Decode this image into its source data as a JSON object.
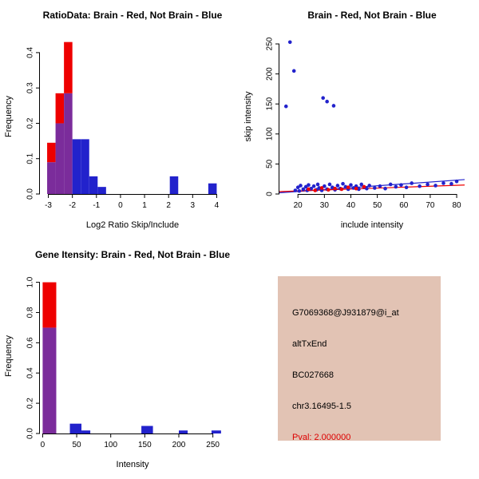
{
  "colors": {
    "brain_red": "#EE0000",
    "not_brain_blue": "#2222CC",
    "overlap_purple": "#7B2C9B",
    "axis_black": "#000000",
    "info_box_bg": "#E2C3B4",
    "pval_red": "#DD0000"
  },
  "chart_data": [
    {
      "id": "ratio-histogram",
      "type": "bar",
      "title": "RatioData: Brain - Red, Not Brain - Blue",
      "xlabel": "Log2 Ratio Skip/Include",
      "ylabel": "Frequency",
      "xlim": [
        -3.35,
        4.35
      ],
      "ylim": [
        0,
        0.445
      ],
      "grid": false,
      "xticks": [
        {
          "v": -3,
          "l": "-3"
        },
        {
          "v": -2,
          "l": "-2"
        },
        {
          "v": -1,
          "l": "-1"
        },
        {
          "v": 0,
          "l": "0"
        },
        {
          "v": 1,
          "l": "1"
        },
        {
          "v": 2,
          "l": "2"
        },
        {
          "v": 3,
          "l": "3"
        },
        {
          "v": 4,
          "l": "4"
        }
      ],
      "yticks": [
        {
          "v": 0,
          "l": "0.0"
        },
        {
          "v": 0.1,
          "l": "0.1"
        },
        {
          "v": 0.2,
          "l": "0.2"
        },
        {
          "v": 0.3,
          "l": "0.3"
        },
        {
          "v": 0.4,
          "l": "0.4"
        }
      ],
      "series": [
        {
          "name": "Brain",
          "color_key": "brain_red",
          "bins": [
            {
              "x0": -3.05,
              "x1": -2.7,
              "h": 0.145
            },
            {
              "x0": -2.7,
              "x1": -2.35,
              "h": 0.285
            },
            {
              "x0": -2.35,
              "x1": -2.0,
              "h": 0.43
            }
          ]
        },
        {
          "name": "Not Brain",
          "color_key": "not_brain_blue",
          "bins": [
            {
              "x0": -3.05,
              "x1": -2.7,
              "h": 0.09
            },
            {
              "x0": -2.7,
              "x1": -2.35,
              "h": 0.2
            },
            {
              "x0": -2.35,
              "x1": -2.0,
              "h": 0.285
            },
            {
              "x0": -2.0,
              "x1": -1.65,
              "h": 0.155
            },
            {
              "x0": -1.65,
              "x1": -1.3,
              "h": 0.155
            },
            {
              "x0": -1.3,
              "x1": -0.95,
              "h": 0.05
            },
            {
              "x0": -0.95,
              "x1": -0.6,
              "h": 0.02
            },
            {
              "x0": 2.05,
              "x1": 2.4,
              "h": 0.05
            },
            {
              "x0": 3.65,
              "x1": 4.0,
              "h": 0.03
            }
          ]
        }
      ]
    },
    {
      "id": "skip-include-scatter",
      "type": "scatter",
      "title": "Brain - Red, Not Brain - Blue",
      "xlabel": "include intensity",
      "ylabel": "skip intensity",
      "xlim": [
        13,
        83
      ],
      "ylim": [
        0,
        262
      ],
      "grid": false,
      "xticks": [
        {
          "v": 20,
          "l": "20"
        },
        {
          "v": 30,
          "l": "30"
        },
        {
          "v": 40,
          "l": "40"
        },
        {
          "v": 50,
          "l": "50"
        },
        {
          "v": 60,
          "l": "60"
        },
        {
          "v": 70,
          "l": "70"
        },
        {
          "v": 80,
          "l": "80"
        }
      ],
      "yticks": [
        {
          "v": 0,
          "l": "0"
        },
        {
          "v": 50,
          "l": "50"
        },
        {
          "v": 100,
          "l": "100"
        },
        {
          "v": 150,
          "l": "150"
        },
        {
          "v": 200,
          "l": "200"
        },
        {
          "v": 250,
          "l": "250"
        }
      ],
      "series": [
        {
          "name": "Not Brain",
          "color_key": "not_brain_blue",
          "points": [
            [
              17,
              253
            ],
            [
              18.5,
              205
            ],
            [
              15.5,
              146
            ],
            [
              29.5,
              160
            ],
            [
              31,
              154
            ],
            [
              33.5,
              147
            ],
            [
              19,
              6
            ],
            [
              20,
              11
            ],
            [
              20.5,
              5
            ],
            [
              21,
              14
            ],
            [
              22,
              8
            ],
            [
              23,
              12
            ],
            [
              23.5,
              6
            ],
            [
              24,
              15
            ],
            [
              25,
              9
            ],
            [
              26,
              13
            ],
            [
              27,
              7
            ],
            [
              27.5,
              16
            ],
            [
              28,
              10
            ],
            [
              29,
              6
            ],
            [
              30,
              13
            ],
            [
              31,
              8
            ],
            [
              32,
              16
            ],
            [
              33,
              11
            ],
            [
              34,
              7
            ],
            [
              35,
              14
            ],
            [
              36,
              9
            ],
            [
              37,
              17
            ],
            [
              38,
              12
            ],
            [
              39,
              8
            ],
            [
              40,
              15
            ],
            [
              41,
              10
            ],
            [
              42,
              13
            ],
            [
              43,
              8
            ],
            [
              44,
              16
            ],
            [
              45,
              11
            ],
            [
              46,
              9
            ],
            [
              47,
              14
            ],
            [
              49,
              10
            ],
            [
              51,
              13
            ],
            [
              53,
              9
            ],
            [
              55,
              16
            ],
            [
              57,
              12
            ],
            [
              59,
              15
            ],
            [
              61,
              11
            ],
            [
              63,
              18
            ],
            [
              66,
              13
            ],
            [
              69,
              16
            ],
            [
              72,
              14
            ],
            [
              75,
              18
            ],
            [
              78,
              17
            ],
            [
              80,
              21
            ]
          ]
        },
        {
          "name": "Brain",
          "color_key": "brain_red",
          "points": [
            [
              24,
              8
            ],
            [
              26.5,
              6
            ],
            [
              29,
              10
            ],
            [
              31.5,
              7
            ],
            [
              34,
              9
            ],
            [
              36.5,
              8
            ],
            [
              39,
              11
            ],
            [
              42,
              9
            ],
            [
              45,
              12
            ]
          ]
        }
      ],
      "lines": [
        {
          "color_key": "not_brain_blue",
          "x1": 13,
          "y1": 2,
          "x2": 83,
          "y2": 24
        },
        {
          "color_key": "brain_red",
          "x1": 13,
          "y1": 4,
          "x2": 83,
          "y2": 15
        }
      ]
    },
    {
      "id": "gene-intensity-histogram",
      "type": "bar",
      "title": "Gene Itensity: Brain - Red, Not Brain - Blue",
      "xlabel": "Intensity",
      "ylabel": "Frequency",
      "xlim": [
        -4,
        268
      ],
      "ylim": [
        0,
        1.04
      ],
      "grid": false,
      "xticks": [
        {
          "v": 0,
          "l": "0"
        },
        {
          "v": 50,
          "l": "50"
        },
        {
          "v": 100,
          "l": "100"
        },
        {
          "v": 150,
          "l": "150"
        },
        {
          "v": 200,
          "l": "200"
        },
        {
          "v": 250,
          "l": "250"
        }
      ],
      "yticks": [
        {
          "v": 0,
          "l": "0.0"
        },
        {
          "v": 0.2,
          "l": "0.2"
        },
        {
          "v": 0.4,
          "l": "0.4"
        },
        {
          "v": 0.6,
          "l": "0.6"
        },
        {
          "v": 0.8,
          "l": "0.8"
        },
        {
          "v": 1.0,
          "l": "1.0"
        }
      ],
      "series": [
        {
          "name": "Brain",
          "color_key": "brain_red",
          "bins": [
            {
              "x0": 0,
              "x1": 20,
              "h": 1.0
            }
          ]
        },
        {
          "name": "Not Brain",
          "color_key": "not_brain_blue",
          "bins": [
            {
              "x0": 0,
              "x1": 20,
              "h": 0.7
            },
            {
              "x0": 40,
              "x1": 57,
              "h": 0.065
            },
            {
              "x0": 57,
              "x1": 70,
              "h": 0.02
            },
            {
              "x0": 145,
              "x1": 162,
              "h": 0.05
            },
            {
              "x0": 200,
              "x1": 213,
              "h": 0.02
            },
            {
              "x0": 248,
              "x1": 262,
              "h": 0.02
            }
          ]
        }
      ]
    }
  ],
  "info_panel": {
    "lines": [
      {
        "text": "G7069368@J931879@i_at",
        "color": "#000000"
      },
      {
        "text": "altTxEnd",
        "color": "#000000"
      },
      {
        "text": "BC027668",
        "color": "#000000"
      },
      {
        "text": "chr3.16495-1.5",
        "color": "#000000"
      },
      {
        "text": "Pval: 2.000000",
        "color": "#DD0000"
      }
    ]
  }
}
